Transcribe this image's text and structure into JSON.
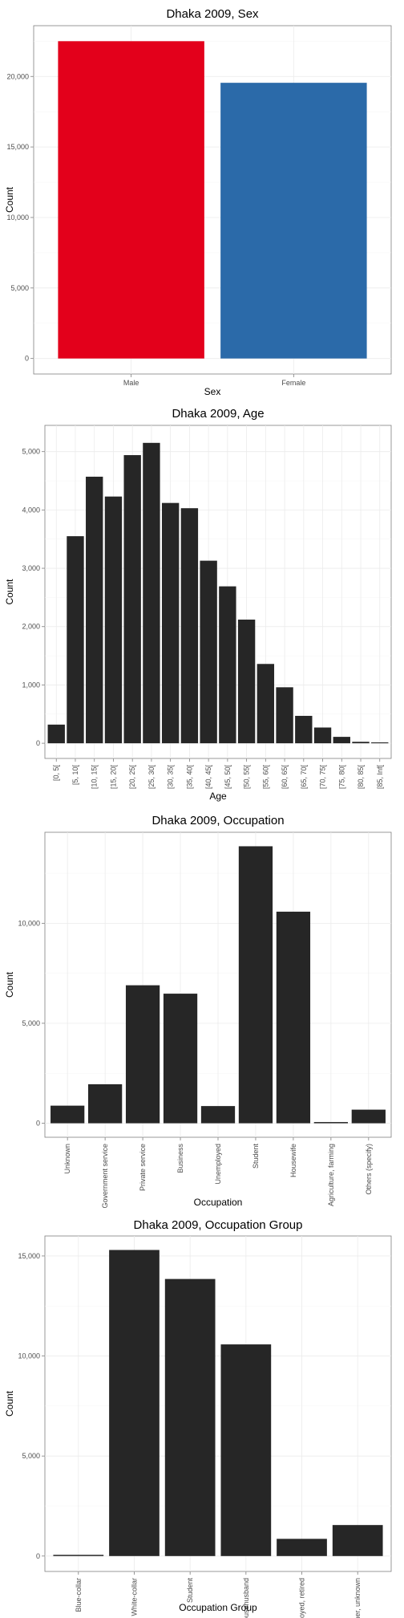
{
  "chart_data": [
    {
      "type": "bar",
      "title": "Dhaka 2009, Sex",
      "xlabel": "Sex",
      "ylabel": "Count",
      "categories": [
        "Male",
        "Female"
      ],
      "values": [
        22500,
        19550
      ],
      "colors": [
        "#e3001b",
        "#2b6aa9"
      ],
      "ylim": [
        -1100,
        23600
      ],
      "yticks": [
        0,
        5000,
        10000,
        15000,
        20000
      ],
      "ytick_labels": [
        "0",
        "5,000",
        "10,000",
        "15,000",
        "20,000"
      ],
      "x_tick_rotation": 0,
      "grid": true
    },
    {
      "type": "bar",
      "title": "Dhaka 2009, Age",
      "xlabel": "Age",
      "ylabel": "Count",
      "categories": [
        "[0, 5[",
        "[5, 10[",
        "[10, 15[",
        "[15, 20[",
        "[20, 25[",
        "[25, 30[",
        "[30, 35[",
        "[35, 40[",
        "[40, 45[",
        "[45, 50[",
        "[50, 55[",
        "[55, 60[",
        "[60, 65[",
        "[65, 70[",
        "[70, 75[",
        "[75, 80[",
        "[80, 85[",
        "[85, Inf["
      ],
      "values": [
        320,
        3550,
        4570,
        4230,
        4940,
        5150,
        4120,
        4030,
        3130,
        2690,
        2120,
        1360,
        960,
        470,
        270,
        110,
        25,
        15
      ],
      "colors": [
        "#262626"
      ],
      "ylim": [
        -260,
        5450
      ],
      "yticks": [
        0,
        1000,
        2000,
        3000,
        4000,
        5000
      ],
      "ytick_labels": [
        "0",
        "1,000",
        "2,000",
        "3,000",
        "4,000",
        "5,000"
      ],
      "x_tick_rotation": -90,
      "grid": true
    },
    {
      "type": "bar",
      "title": "Dhaka 2009, Occupation",
      "xlabel": "Occupation",
      "ylabel": "Count",
      "categories": [
        "Unknown",
        "Government service",
        "Private service",
        "Business",
        "Unemployed",
        "Student",
        "Housewife",
        "Agriculture, farming",
        "Others (specify)"
      ],
      "values": [
        880,
        1950,
        6900,
        6480,
        860,
        13850,
        10580,
        60,
        680
      ],
      "colors": [
        "#262626"
      ],
      "ylim": [
        -700,
        14550
      ],
      "yticks": [
        0,
        5000,
        10000
      ],
      "ytick_labels": [
        "0",
        "5,000",
        "10,000"
      ],
      "x_tick_rotation": -90,
      "grid": true
    },
    {
      "type": "bar",
      "title": "Dhaka 2009, Occupation Group",
      "xlabel": "Occupation Group",
      "ylabel": "Count",
      "categories": [
        "Blue-collar",
        "White-collar",
        "Student",
        "Housewife, househusband",
        "Unemployed, retired",
        "Other, unknown"
      ],
      "values": [
        60,
        15300,
        13850,
        10580,
        860,
        1550
      ],
      "colors": [
        "#262626"
      ],
      "ylim": [
        -770,
        16000
      ],
      "yticks": [
        0,
        5000,
        10000,
        15000
      ],
      "ytick_labels": [
        "0",
        "5,000",
        "10,000",
        "15,000"
      ],
      "x_tick_rotation": -90,
      "grid": true
    }
  ]
}
